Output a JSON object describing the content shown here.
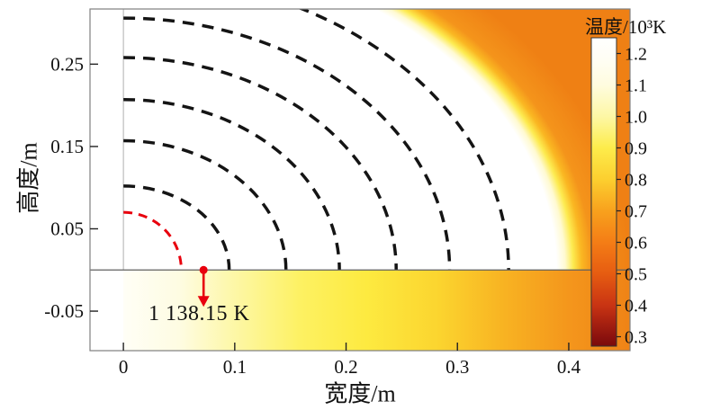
{
  "figure": {
    "background": "#ffffff"
  },
  "chart_data": {
    "type": "heatmap",
    "title": "",
    "xlabel": "宽度/m",
    "ylabel": "高度/m",
    "xlim": [
      -0.03,
      0.455
    ],
    "ylim": [
      -0.098,
      0.317
    ],
    "x_ticks": [
      {
        "v": 0,
        "label": "0"
      },
      {
        "v": 0.1,
        "label": "0.1"
      },
      {
        "v": 0.2,
        "label": "0.2"
      },
      {
        "v": 0.3,
        "label": "0.3"
      },
      {
        "v": 0.4,
        "label": "0.4"
      }
    ],
    "y_ticks": [
      {
        "v": -0.05,
        "label": "-0.05"
      },
      {
        "v": 0.05,
        "label": "0.05"
      },
      {
        "v": 0.15,
        "label": "0.15"
      },
      {
        "v": 0.25,
        "label": "0.25"
      }
    ],
    "colorbar": {
      "title": "温度/10³K",
      "scale_range": [
        0.27,
        1.25
      ],
      "ticks": [
        {
          "v": 1.2,
          "label": "1.2"
        },
        {
          "v": 1.1,
          "label": "1.1"
        },
        {
          "v": 1.0,
          "label": "1.0"
        },
        {
          "v": 0.9,
          "label": "0.9"
        },
        {
          "v": 0.8,
          "label": "0.8"
        },
        {
          "v": 0.7,
          "label": "0.7"
        },
        {
          "v": 0.6,
          "label": "0.6"
        },
        {
          "v": 0.5,
          "label": "0.5"
        },
        {
          "v": 0.4,
          "label": "0.4"
        },
        {
          "v": 0.3,
          "label": "0.3"
        }
      ],
      "stops": [
        {
          "v": 1.25,
          "color": "#ffffff"
        },
        {
          "v": 1.18,
          "color": "#fffef4"
        },
        {
          "v": 1.1,
          "color": "#fffcdf"
        },
        {
          "v": 1.0,
          "color": "#fdf7a5"
        },
        {
          "v": 0.9,
          "color": "#fdec4b"
        },
        {
          "v": 0.8,
          "color": "#fccf2f"
        },
        {
          "v": 0.7,
          "color": "#f8a11d"
        },
        {
          "v": 0.6,
          "color": "#f47d16"
        },
        {
          "v": 0.5,
          "color": "#e65c11"
        },
        {
          "v": 0.4,
          "color": "#c93413"
        },
        {
          "v": 0.3,
          "color": "#8c120e"
        },
        {
          "v": 0.27,
          "color": "#7a0c0b"
        }
      ]
    },
    "field": {
      "description": "Axisymmetric temperature field: saturated white hot zone (≥1.2×10³ K) within ≈0.40 m of the origin, ambient orange (≈0.7×10³ K) outside; ground strip below y=0 cools from ≈1.14×10³ K near x=0 to ≈0.7×10³ K at the right edge.",
      "hot_zone_radius_m": 0.4,
      "upper_gradient_stops": [
        {
          "t": 0,
          "color": "#ffffff"
        },
        {
          "t": 0.855,
          "color": "#ffffff"
        },
        {
          "t": 0.872,
          "color": "#fffad2"
        },
        {
          "t": 0.888,
          "color": "#fdeb50"
        },
        {
          "t": 0.905,
          "color": "#fab722"
        },
        {
          "t": 0.925,
          "color": "#f4941b"
        },
        {
          "t": 1,
          "color": "#ef8014"
        }
      ],
      "ground_gradient_stops": [
        {
          "t": 0,
          "color": "#fffef6"
        },
        {
          "t": 0.11,
          "color": "#fefce2"
        },
        {
          "t": 0.22,
          "color": "#fdf7a6"
        },
        {
          "t": 0.35,
          "color": "#fdf162"
        },
        {
          "t": 0.48,
          "color": "#fdea40"
        },
        {
          "t": 0.62,
          "color": "#fbd52f"
        },
        {
          "t": 0.75,
          "color": "#f8b322"
        },
        {
          "t": 0.88,
          "color": "#f4961c"
        },
        {
          "t": 1,
          "color": "#ef8316"
        }
      ]
    },
    "contours": {
      "line_color": "#141414",
      "width": 3.5,
      "dash": [
        13,
        9
      ],
      "arcs": [
        {
          "rx": 0.095,
          "ry": 0.102
        },
        {
          "rx": 0.146,
          "ry": 0.157
        },
        {
          "rx": 0.194,
          "ry": 0.207
        },
        {
          "rx": 0.245,
          "ry": 0.258
        },
        {
          "rx": 0.293,
          "ry": 0.306
        },
        {
          "rx": 0.346,
          "ry": 0.358
        }
      ],
      "highlight_arc": {
        "rx": 0.052,
        "ry": 0.07,
        "color": "#e8000d",
        "width": 3,
        "dash": [
          10,
          7
        ]
      }
    },
    "annotation": {
      "text": "1 138.15 K",
      "x": 0.072,
      "y": 0,
      "marker_color": "#e8000d"
    },
    "frame_color": "#7f7f7f",
    "axis_line_color": "#5f5f5f",
    "tick_color": "#222222",
    "text_color": "#111111"
  }
}
